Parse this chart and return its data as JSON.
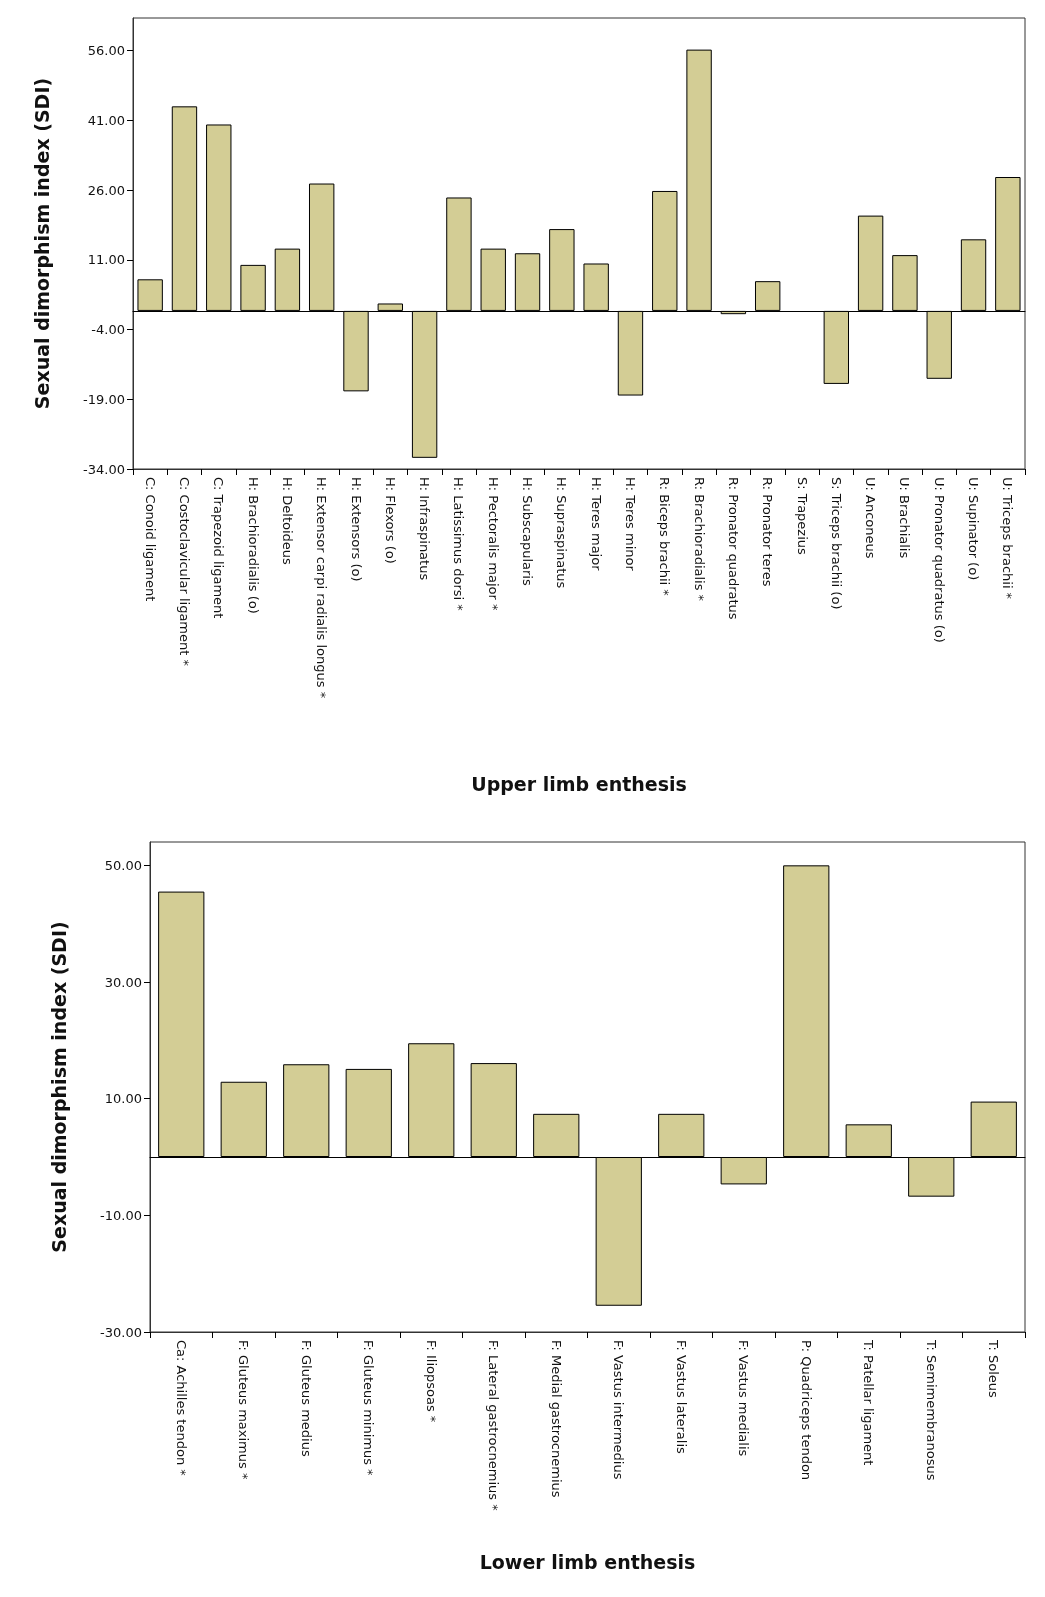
{
  "chart_data": [
    {
      "type": "bar",
      "xlabel": "Upper limb enthesis",
      "ylabel": "Sexual dimorphism index (SDI)",
      "color": "#d3cd95",
      "categories": [
        "C: Conoid ligament",
        "C: Costoclavicular ligament *",
        "C: Trapezoid ligament",
        "H: Brachioradialis (o)",
        "H: Deltoideus",
        "H: Extensor carpi radialis longus *",
        "H: Extensors (o)",
        "H: Flexors (o)",
        "H: Infraspinatus",
        "H: Latissimus dorsi *",
        "H: Pectoralis major *",
        "H: Subscapularis",
        "H: Supraspinatus",
        "H: Teres major",
        "H: Teres minor",
        "R: Biceps brachii *",
        "R: Brachioradialis *",
        "R: Pronator quadratus",
        "R: Pronator teres",
        "S: Trapezius",
        "S: Triceps brachii (o)",
        "U: Anconeus",
        "U: Brachialis",
        "U: Pronator quadratus (o)",
        "U: Supinator (o)",
        "U: Triceps brachii *"
      ],
      "values": [
        6.8,
        44.0,
        40.1,
        9.9,
        13.4,
        27.4,
        -17.3,
        1.6,
        -31.6,
        24.4,
        13.4,
        12.4,
        17.6,
        10.2,
        -18.2,
        25.8,
        56.2,
        -0.7,
        6.4,
        null,
        -15.7,
        20.5,
        12.0,
        -14.6,
        15.4,
        28.8
      ],
      "ylim": [
        -34,
        63
      ],
      "yticks": [
        {
          "value": -34,
          "label": "-34.00"
        },
        {
          "value": -19,
          "label": "-19.00"
        },
        {
          "value": -4,
          "label": "-4.00"
        },
        {
          "value": 11,
          "label": "11.00"
        },
        {
          "value": 26,
          "label": "26.00"
        },
        {
          "value": 41,
          "label": "41.00"
        },
        {
          "value": 56,
          "label": "56.00"
        }
      ]
    },
    {
      "type": "bar",
      "xlabel": "Lower limb enthesis",
      "ylabel": "Sexual dimorphism index (SDI)",
      "color": "#d3cd95",
      "categories": [
        "Ca: Achilles tendon *",
        "F: Gluteus maximus *",
        "F: Gluteus medius",
        "F: Gluteus minimus *",
        "F: Iliopsoas *",
        "F: Lateral gastrocnemius *",
        "F: Medial gastrocnemius",
        "F: Vastus intermedius",
        "F: Vastus lateralis",
        "F: Vastus medialis",
        "P: Quadriceps tendon",
        "T: Patellar ligament",
        "T: Semimembranosus",
        "T: Soleus"
      ],
      "values": [
        45.5,
        12.9,
        15.9,
        15.1,
        19.5,
        16.1,
        7.4,
        -25.5,
        7.4,
        -4.7,
        50.0,
        5.6,
        -6.8,
        9.5
      ],
      "ylim": [
        -30,
        54
      ],
      "yticks": [
        {
          "value": -30,
          "label": "-30.00"
        },
        {
          "value": -10,
          "label": "-10.00"
        },
        {
          "value": 10,
          "label": "10.00"
        },
        {
          "value": 30,
          "label": "30.00"
        },
        {
          "value": 50,
          "label": "50.00"
        }
      ]
    }
  ]
}
